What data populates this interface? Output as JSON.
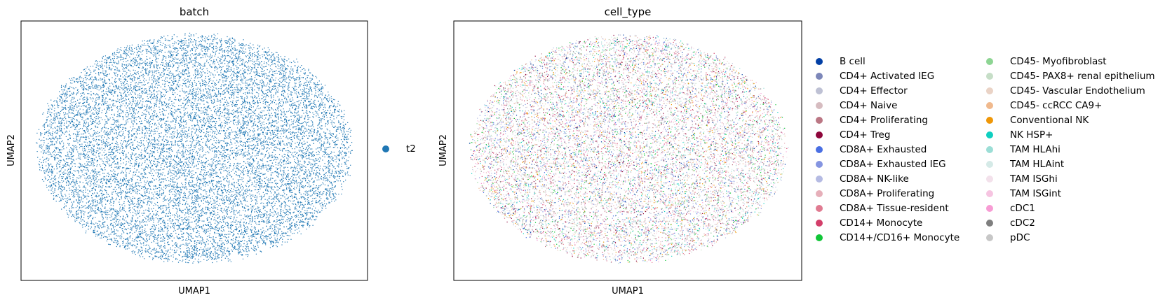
{
  "chart_data": [
    {
      "type": "scatter",
      "title": "batch",
      "xlabel": "UMAP1",
      "ylabel": "UMAP2",
      "axis_ticks": false,
      "grid": false,
      "legend_placement": "right",
      "categories": [
        {
          "name": "t2",
          "color": "#1f77b4"
        }
      ]
    },
    {
      "type": "scatter",
      "title": "cell_type",
      "xlabel": "UMAP1",
      "ylabel": "UMAP2",
      "axis_ticks": false,
      "grid": false,
      "legend_placement": "right",
      "legend_columns": 2,
      "categories": [
        {
          "name": "B cell",
          "color": "#023fa5"
        },
        {
          "name": "CD4+ Activated IEG",
          "color": "#7d87b9"
        },
        {
          "name": "CD4+ Effector",
          "color": "#bec1d4"
        },
        {
          "name": "CD4+ Naive",
          "color": "#d6bcc0"
        },
        {
          "name": "CD4+ Proliferating",
          "color": "#bb7784"
        },
        {
          "name": "CD4+ Treg",
          "color": "#8e063b"
        },
        {
          "name": "CD8A+ Exhausted",
          "color": "#4a6fe3"
        },
        {
          "name": "CD8A+ Exhausted IEG",
          "color": "#8595e1"
        },
        {
          "name": "CD8A+ NK-like",
          "color": "#b5bbe3"
        },
        {
          "name": "CD8A+ Proliferating",
          "color": "#e6afb9"
        },
        {
          "name": "CD8A+ Tissue-resident",
          "color": "#e07b91"
        },
        {
          "name": "CD14+ Monocyte",
          "color": "#d33f6a"
        },
        {
          "name": "CD14+/CD16+ Monocyte",
          "color": "#11c638"
        },
        {
          "name": "CD45- Myofibroblast",
          "color": "#8dd593"
        },
        {
          "name": "CD45- PAX8+ renal epithelium",
          "color": "#c6dec7"
        },
        {
          "name": "CD45- Vascular Endothelium",
          "color": "#ead3c6"
        },
        {
          "name": "CD45- ccRCC CA9+",
          "color": "#f0b98d"
        },
        {
          "name": "Conventional NK",
          "color": "#ef9708"
        },
        {
          "name": "NK HSP+",
          "color": "#0fcfc0"
        },
        {
          "name": "TAM HLAhi",
          "color": "#9cded6"
        },
        {
          "name": "TAM HLAint",
          "color": "#d5eae7"
        },
        {
          "name": "TAM ISGhi",
          "color": "#f3e1eb"
        },
        {
          "name": "TAM ISGint",
          "color": "#f6c4e1"
        },
        {
          "name": "cDC1",
          "color": "#f79cd4"
        },
        {
          "name": "cDC2",
          "color": "#7f7f7f"
        },
        {
          "name": "pDC",
          "color": "#c7c7c7"
        }
      ]
    }
  ]
}
